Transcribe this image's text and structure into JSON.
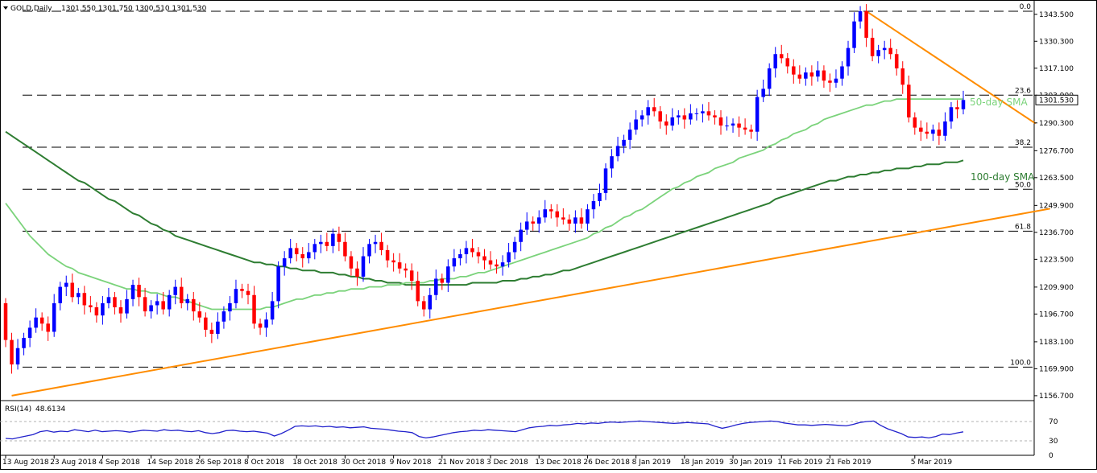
{
  "header": {
    "symbol_label": "GOLD,Daily",
    "ohlc": "1301.550 1301.750 1300.510 1301.530"
  },
  "rsi": {
    "title": "RSI(14)",
    "value": "48.6134",
    "levels": [
      70,
      30
    ],
    "axis_labels": [
      "70",
      "30",
      "0"
    ],
    "values": [
      35,
      34,
      37,
      40,
      43,
      49,
      51,
      48,
      50,
      49,
      53,
      51,
      49,
      52,
      49,
      50,
      51,
      50,
      48,
      50,
      52,
      51,
      50,
      53,
      51,
      52,
      50,
      49,
      51,
      47,
      45,
      47,
      51,
      52,
      50,
      49,
      50,
      48,
      46,
      40,
      45,
      52,
      60,
      61,
      60,
      61,
      59,
      60,
      58,
      59,
      57,
      58,
      59,
      56,
      55,
      54,
      52,
      50,
      49,
      47,
      39,
      36,
      38,
      41,
      44,
      47,
      49,
      50,
      52,
      51,
      53,
      52,
      51,
      50,
      49,
      53,
      57,
      59,
      60,
      62,
      61,
      63,
      64,
      66,
      65,
      67,
      66,
      68,
      69,
      68,
      69,
      70,
      71,
      70,
      69,
      68,
      67,
      66,
      67,
      68,
      67,
      66,
      65,
      60,
      56,
      59,
      63,
      66,
      68,
      69,
      70,
      71,
      70,
      67,
      65,
      63,
      63,
      62,
      63,
      64,
      63,
      62,
      61,
      64,
      68,
      70,
      71,
      62,
      55,
      50,
      45,
      38,
      37,
      38,
      36,
      39,
      44,
      43,
      46,
      48.6
    ]
  },
  "chart_data": {
    "type": "candlestick",
    "instrument": "GOLD",
    "timeframe": "Daily",
    "x_tick_labels": [
      "13 Aug 2018",
      "23 Aug 2018",
      "4 Sep 2018",
      "14 Sep 2018",
      "26 Sep 2018",
      "8 Oct 2018",
      "18 Oct 2018",
      "30 Oct 2018",
      "9 Nov 2018",
      "21 Nov 2018",
      "3 Dec 2018",
      "13 Dec 2018",
      "26 Dec 2018",
      "8 Jan 2019",
      "18 Jan 2019",
      "30 Jan 2019",
      "11 Feb 2019",
      "21 Feb 2019",
      "5 Mar 2019"
    ],
    "y_tick_labels": [
      "1343.500",
      "1330.300",
      "1317.100",
      "1303.900",
      "1290.300",
      "1276.700",
      "1263.500",
      "1249.900",
      "1236.700",
      "1223.500",
      "1209.900",
      "1196.700",
      "1183.100",
      "1169.900",
      "1156.700"
    ],
    "ylim": [
      1154.3,
      1350.5
    ],
    "current_price": "1301.530",
    "close": [
      1184,
      1172,
      1180,
      1185,
      1190,
      1195,
      1192,
      1188,
      1202,
      1210,
      1212,
      1205,
      1207,
      1201,
      1200,
      1196,
      1202,
      1205,
      1200,
      1197,
      1204,
      1211,
      1205,
      1198,
      1201,
      1203,
      1199,
      1206,
      1210,
      1202,
      1204,
      1198,
      1195,
      1189,
      1187,
      1193,
      1198,
      1202,
      1209,
      1208,
      1206,
      1192,
      1190,
      1194,
      1203,
      1220,
      1224,
      1229,
      1226,
      1224,
      1227,
      1231,
      1232,
      1230,
      1236,
      1232,
      1225,
      1219,
      1215,
      1225,
      1231,
      1232,
      1228,
      1223,
      1222,
      1219,
      1218,
      1213,
      1203,
      1199,
      1206,
      1214,
      1212,
      1220,
      1224,
      1226,
      1229,
      1227,
      1225,
      1223,
      1221,
      1220,
      1222,
      1227,
      1232,
      1238,
      1242,
      1241,
      1244,
      1248,
      1247,
      1244,
      1243,
      1241,
      1244,
      1241,
      1248,
      1252,
      1256,
      1268,
      1274,
      1279,
      1282,
      1287,
      1292,
      1294,
      1298,
      1296,
      1291,
      1289,
      1293,
      1294,
      1292,
      1295,
      1295,
      1296,
      1294,
      1293,
      1289,
      1289,
      1290,
      1288,
      1287,
      1286,
      1303,
      1307,
      1317,
      1324,
      1322,
      1318,
      1314,
      1312,
      1315,
      1313,
      1316,
      1311,
      1310,
      1312,
      1318,
      1327,
      1340,
      1345,
      1332,
      1323,
      1326,
      1327,
      1324,
      1317,
      1309,
      1293,
      1288,
      1286,
      1285,
      1287,
      1284,
      1291,
      1298,
      1297,
      1301.53
    ],
    "series": [
      {
        "name": "50-day SMA",
        "values": [
          1251,
          1247,
          1243,
          1239,
          1235,
          1232,
          1229,
          1226,
          1224,
          1222,
          1220,
          1219,
          1217,
          1216,
          1215,
          1214,
          1213,
          1212,
          1211,
          1210,
          1209,
          1209,
          1208,
          1208,
          1207,
          1207,
          1206,
          1205,
          1205,
          1204,
          1203,
          1202,
          1201,
          1200,
          1199,
          1199,
          1199,
          1199,
          1199,
          1199,
          1199,
          1199,
          1199,
          1200,
          1200,
          1201,
          1202,
          1203,
          1204,
          1204,
          1205,
          1206,
          1206,
          1207,
          1207,
          1208,
          1208,
          1209,
          1209,
          1209,
          1210,
          1210,
          1210,
          1211,
          1211,
          1211,
          1212,
          1212,
          1212,
          1212,
          1213,
          1213,
          1214,
          1214,
          1214,
          1215,
          1215,
          1216,
          1217,
          1217,
          1218,
          1219,
          1220,
          1221,
          1222,
          1223,
          1224,
          1225,
          1226,
          1227,
          1228,
          1229,
          1230,
          1231,
          1232,
          1233,
          1234,
          1236,
          1237,
          1239,
          1240,
          1242,
          1244,
          1245,
          1247,
          1248,
          1250,
          1252,
          1254,
          1256,
          1258,
          1259,
          1261,
          1262,
          1264,
          1265,
          1266,
          1268,
          1269,
          1270,
          1271,
          1273,
          1274,
          1275,
          1276,
          1277,
          1279,
          1280,
          1282,
          1283,
          1285,
          1286,
          1287,
          1289,
          1290,
          1292,
          1293,
          1294,
          1295,
          1296,
          1297,
          1298,
          1299,
          1299,
          1300,
          1301,
          1301,
          1302,
          1302,
          1302,
          1302,
          1302,
          1302,
          1302,
          1302,
          1302,
          1302,
          1302,
          1302
        ]
      },
      {
        "name": "100-day SMA",
        "values": [
          1286,
          1284,
          1282,
          1280,
          1278,
          1276,
          1274,
          1272,
          1270,
          1268,
          1266,
          1264,
          1262,
          1261,
          1259,
          1257,
          1255,
          1253,
          1252,
          1250,
          1248,
          1246,
          1245,
          1243,
          1241,
          1240,
          1238,
          1237,
          1235,
          1234,
          1233,
          1232,
          1231,
          1230,
          1229,
          1228,
          1227,
          1226,
          1225,
          1224,
          1223,
          1222,
          1222,
          1221,
          1221,
          1220,
          1220,
          1219,
          1219,
          1218,
          1218,
          1218,
          1217,
          1217,
          1217,
          1216,
          1216,
          1215,
          1215,
          1214,
          1214,
          1213,
          1213,
          1212,
          1212,
          1212,
          1211,
          1211,
          1211,
          1211,
          1211,
          1211,
          1211,
          1211,
          1211,
          1211,
          1211,
          1212,
          1212,
          1212,
          1212,
          1212,
          1213,
          1213,
          1213,
          1214,
          1214,
          1215,
          1215,
          1216,
          1216,
          1217,
          1218,
          1218,
          1219,
          1220,
          1221,
          1222,
          1223,
          1224,
          1225,
          1226,
          1227,
          1228,
          1229,
          1230,
          1231,
          1232,
          1233,
          1234,
          1235,
          1236,
          1237,
          1238,
          1239,
          1240,
          1241,
          1242,
          1243,
          1244,
          1245,
          1246,
          1247,
          1248,
          1249,
          1250,
          1251,
          1253,
          1254,
          1255,
          1256,
          1257,
          1258,
          1259,
          1260,
          1261,
          1262,
          1262,
          1263,
          1264,
          1264,
          1265,
          1265,
          1266,
          1266,
          1267,
          1267,
          1268,
          1268,
          1268,
          1269,
          1269,
          1270,
          1270,
          1270,
          1271,
          1271,
          1271,
          1272
        ]
      },
      {
        "name": "Support trend-line",
        "points": [
          [
            1,
            1156.7
          ],
          [
            167,
            1248.3
          ]
        ]
      },
      {
        "name": "Resistance trend-line",
        "points": [
          [
            142,
            1345
          ],
          [
            167,
            1290
          ]
        ]
      }
    ],
    "fibonacci_levels": [
      {
        "label": "0.0",
        "price": 1345.0
      },
      {
        "label": "23.6",
        "price": 1303.9
      },
      {
        "label": "38.2",
        "price": 1278.4
      },
      {
        "label": "50.0",
        "price": 1257.8
      },
      {
        "label": "61.8",
        "price": 1237.3
      },
      {
        "label": "100.0",
        "price": 1170.7
      }
    ],
    "annotations": [
      {
        "text": "50-day SMA",
        "anchor_price": 1306
      },
      {
        "text": "100-day SMA",
        "anchor_price": 1270
      }
    ],
    "colors": {
      "bull": "#0000ff",
      "bear": "#ff0000",
      "sma50": "#7bd37b",
      "sma100": "#2e7d32",
      "trend": "#ff8c00",
      "fib": "#000000"
    }
  }
}
